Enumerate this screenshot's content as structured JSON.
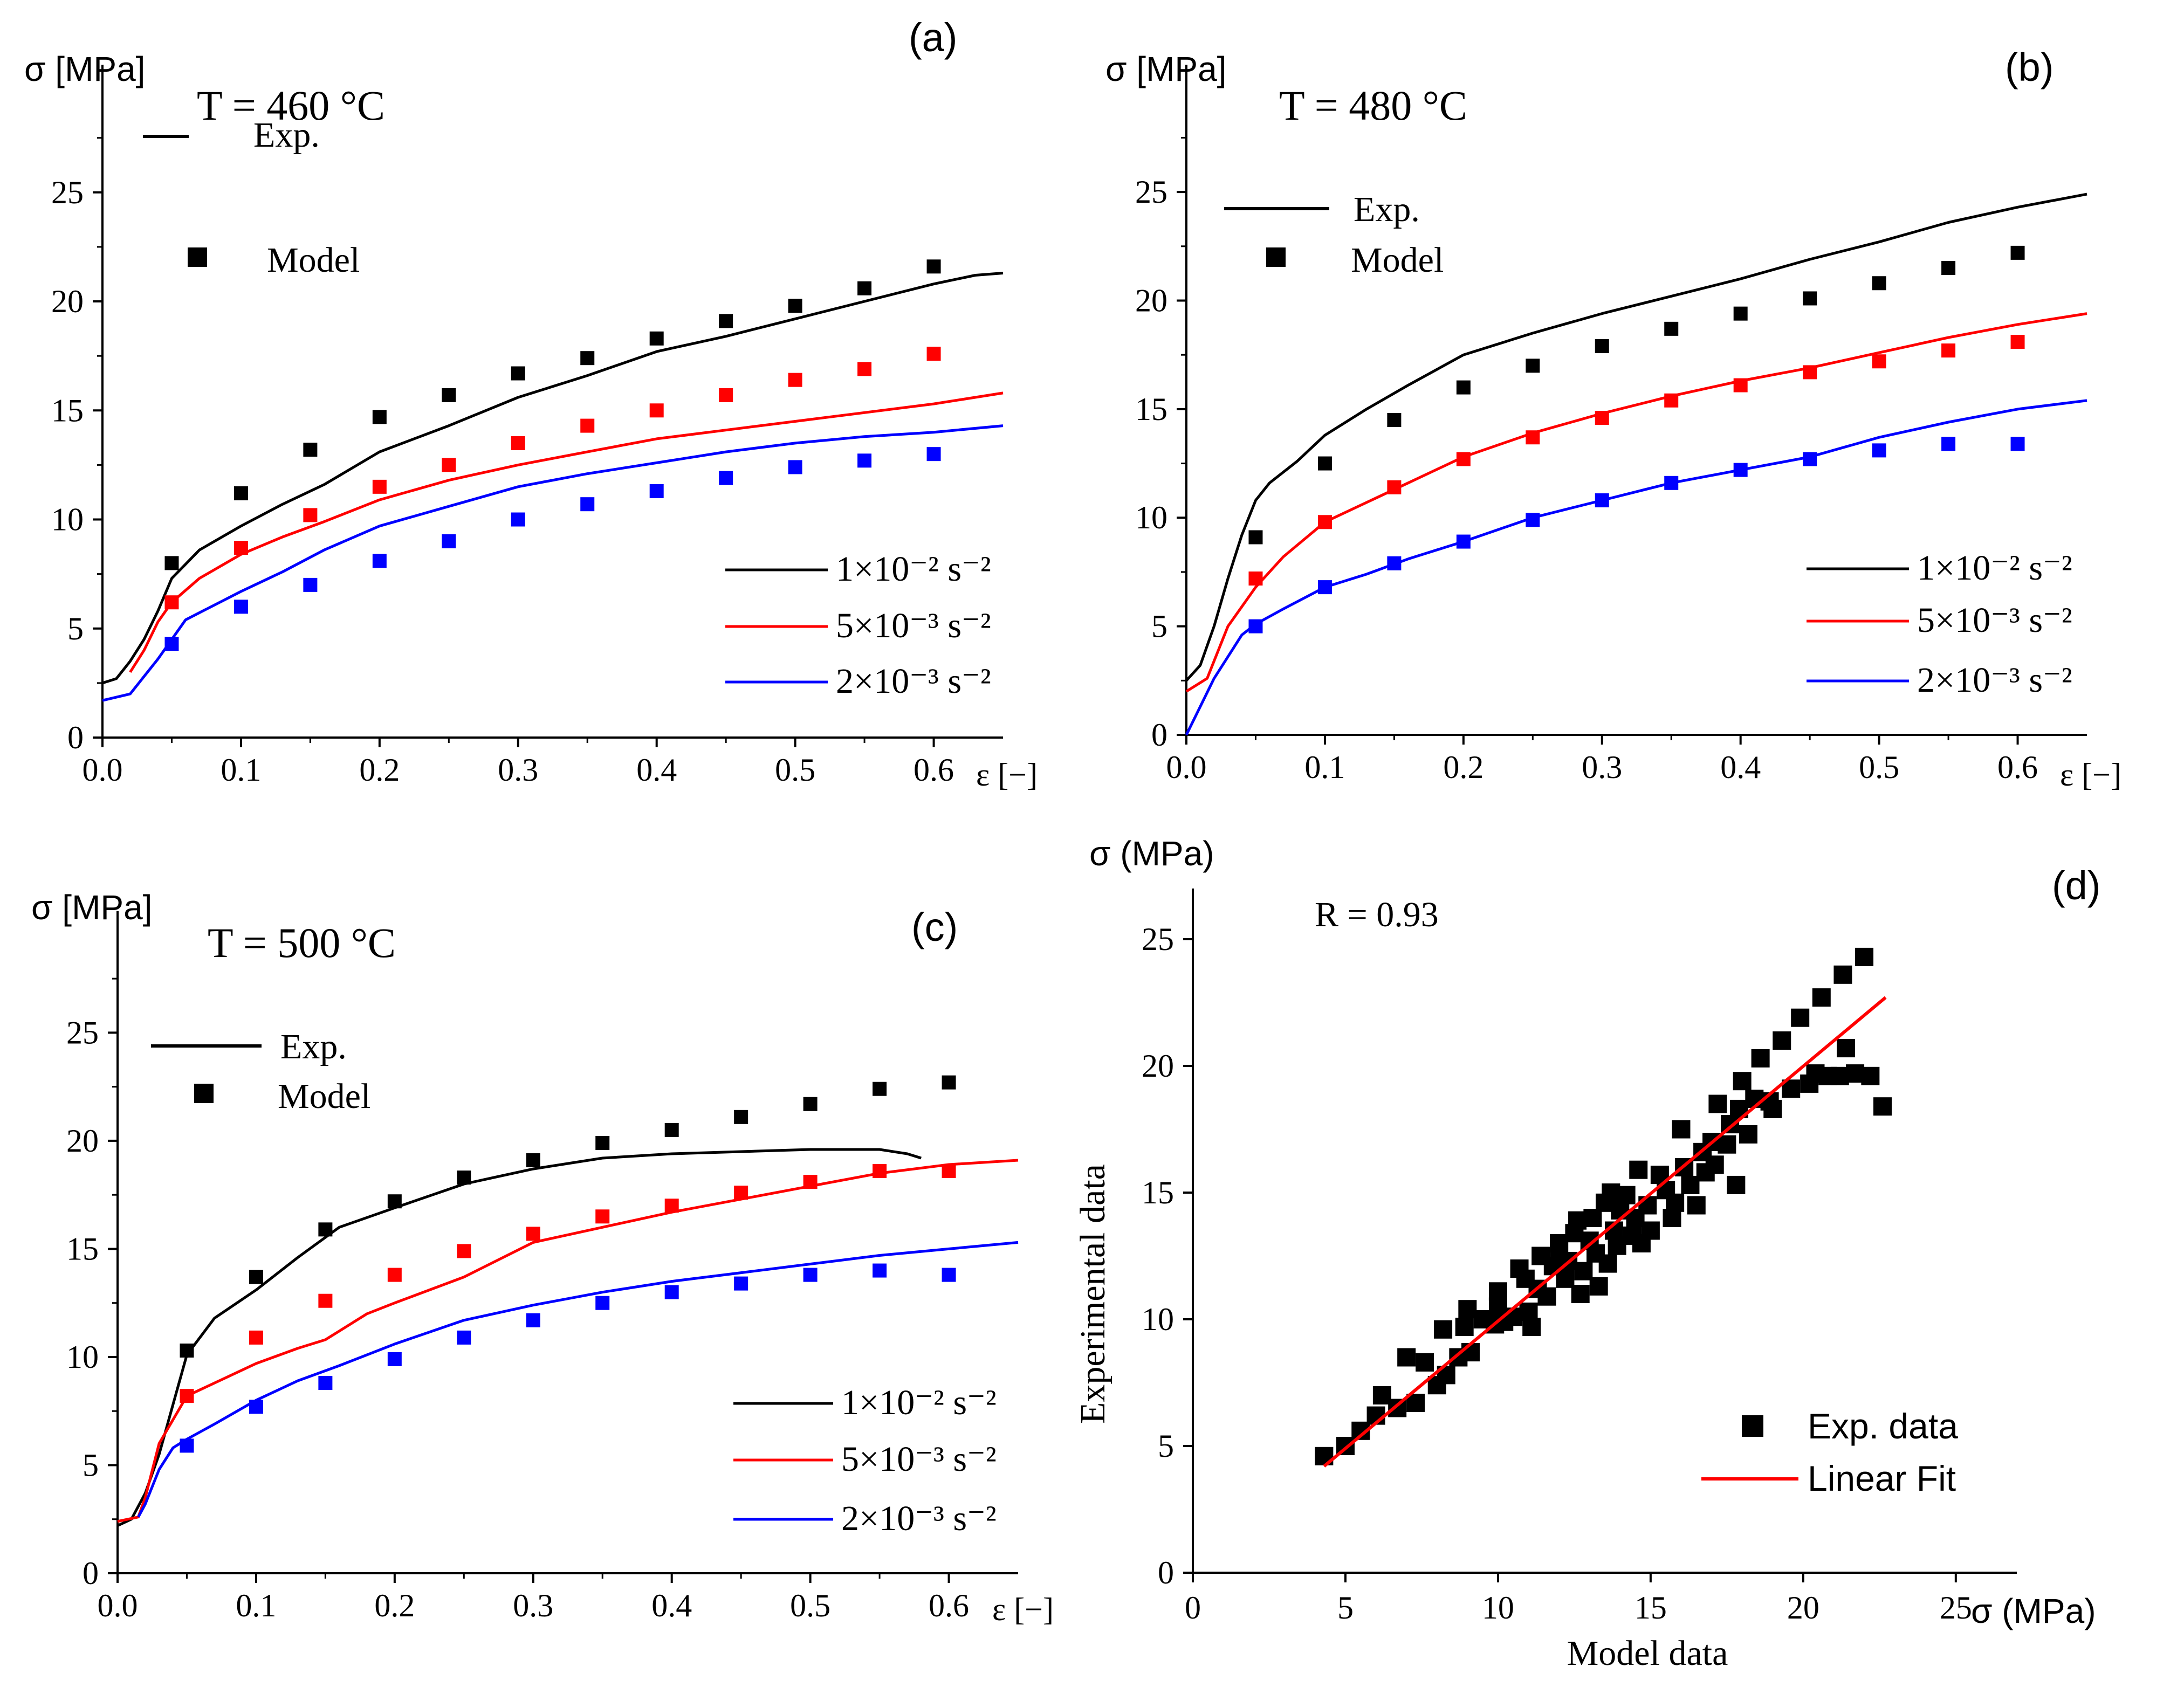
{
  "colors": {
    "black": "#000000",
    "red": "#ff0000",
    "blue": "#0000ff",
    "fit": "#ff0000"
  },
  "chart_data": [
    {
      "type": "line",
      "panel": "(a)",
      "title": "T = 460 °C",
      "ylabel": "σ [MPa]",
      "xlabel": "ε [−]",
      "xlim": [
        0,
        0.65
      ],
      "ylim": [
        0,
        29
      ],
      "xticks": [
        "0.0",
        "0.1",
        "0.2",
        "0.3",
        "0.4",
        "0.5",
        "0.6"
      ],
      "yticks": [
        "0",
        "5",
        "10",
        "15",
        "20",
        "25"
      ],
      "style_legend": {
        "exp": "Exp.",
        "model": "Model"
      },
      "series": [
        {
          "name": "1×10⁻² s⁻²",
          "color": "black",
          "exp_x": [
            0,
            0.01,
            0.02,
            0.03,
            0.04,
            0.05,
            0.07,
            0.1,
            0.13,
            0.16,
            0.2,
            0.25,
            0.3,
            0.35,
            0.4,
            0.45,
            0.5,
            0.55,
            0.6,
            0.63,
            0.65
          ],
          "exp_y": [
            2.5,
            2.7,
            3.5,
            4.5,
            5.8,
            7.3,
            8.6,
            9.7,
            10.7,
            11.6,
            13.1,
            14.3,
            15.6,
            16.6,
            17.7,
            18.4,
            19.2,
            20.0,
            20.8,
            21.2,
            21.3
          ],
          "model_x": [
            0.05,
            0.1,
            0.15,
            0.2,
            0.25,
            0.3,
            0.35,
            0.4,
            0.45,
            0.5,
            0.55,
            0.6
          ],
          "model_y": [
            8.0,
            11.2,
            13.2,
            14.7,
            15.7,
            16.7,
            17.4,
            18.3,
            19.1,
            19.8,
            20.6,
            21.6
          ]
        },
        {
          "name": "5×10⁻³ s⁻²",
          "color": "red",
          "exp_x": [
            0.02,
            0.03,
            0.04,
            0.05,
            0.07,
            0.1,
            0.13,
            0.16,
            0.2,
            0.25,
            0.3,
            0.35,
            0.4,
            0.45,
            0.5,
            0.55,
            0.6,
            0.65
          ],
          "exp_y": [
            3.0,
            4.0,
            5.3,
            6.2,
            7.3,
            8.4,
            9.2,
            9.9,
            10.9,
            11.8,
            12.5,
            13.1,
            13.7,
            14.1,
            14.5,
            14.9,
            15.3,
            15.8
          ],
          "model_x": [
            0.05,
            0.1,
            0.15,
            0.2,
            0.25,
            0.3,
            0.35,
            0.4,
            0.45,
            0.5,
            0.55,
            0.6
          ],
          "model_y": [
            6.2,
            8.7,
            10.2,
            11.5,
            12.5,
            13.5,
            14.3,
            15.0,
            15.7,
            16.4,
            16.9,
            17.6
          ]
        },
        {
          "name": "2×10⁻³ s⁻²",
          "color": "blue",
          "exp_x": [
            0,
            0.02,
            0.03,
            0.04,
            0.05,
            0.06,
            0.1,
            0.13,
            0.16,
            0.2,
            0.25,
            0.3,
            0.35,
            0.4,
            0.45,
            0.5,
            0.55,
            0.6,
            0.65
          ],
          "exp_y": [
            1.7,
            2.0,
            2.8,
            3.6,
            4.5,
            5.4,
            6.7,
            7.6,
            8.6,
            9.7,
            10.6,
            11.5,
            12.1,
            12.6,
            13.1,
            13.5,
            13.8,
            14.0,
            14.3
          ],
          "model_x": [
            0.05,
            0.1,
            0.15,
            0.2,
            0.25,
            0.3,
            0.35,
            0.4,
            0.45,
            0.5,
            0.55,
            0.6
          ],
          "model_y": [
            4.3,
            6.0,
            7.0,
            8.1,
            9.0,
            10.0,
            10.7,
            11.3,
            11.9,
            12.4,
            12.7,
            13.0
          ]
        }
      ]
    },
    {
      "type": "line",
      "panel": "(b)",
      "title": "T = 480 °C",
      "ylabel": "σ [MPa]",
      "xlabel": "ε [−]",
      "xlim": [
        0,
        0.65
      ],
      "ylim": [
        0,
        29
      ],
      "xticks": [
        "0.0",
        "0.1",
        "0.2",
        "0.3",
        "0.4",
        "0.5",
        "0.6"
      ],
      "yticks": [
        "0",
        "5",
        "10",
        "15",
        "20",
        "25"
      ],
      "style_legend": {
        "exp": "Exp.",
        "model": "Model"
      },
      "series": [
        {
          "name": "1×10⁻² s⁻²",
          "color": "black",
          "exp_x": [
            0,
            0.01,
            0.02,
            0.03,
            0.04,
            0.05,
            0.06,
            0.08,
            0.1,
            0.13,
            0.16,
            0.2,
            0.25,
            0.3,
            0.35,
            0.4,
            0.45,
            0.5,
            0.55,
            0.6,
            0.65
          ],
          "exp_y": [
            2.5,
            3.2,
            5.0,
            7.2,
            9.2,
            10.8,
            11.6,
            12.6,
            13.8,
            15.0,
            16.1,
            17.5,
            18.5,
            19.4,
            20.2,
            21.0,
            21.9,
            22.7,
            23.6,
            24.3,
            24.9
          ],
          "model_x": [
            0.05,
            0.1,
            0.15,
            0.2,
            0.25,
            0.3,
            0.35,
            0.4,
            0.45,
            0.5,
            0.55,
            0.6
          ],
          "model_y": [
            9.1,
            12.5,
            14.5,
            16.0,
            17.0,
            17.9,
            18.7,
            19.4,
            20.1,
            20.8,
            21.5,
            22.2
          ]
        },
        {
          "name": "5×10⁻³ s⁻²",
          "color": "red",
          "exp_x": [
            0,
            0.015,
            0.03,
            0.05,
            0.07,
            0.1,
            0.13,
            0.16,
            0.2,
            0.25,
            0.3,
            0.35,
            0.4,
            0.45,
            0.5,
            0.55,
            0.6,
            0.65
          ],
          "exp_y": [
            2.0,
            2.6,
            5.0,
            6.8,
            8.2,
            9.8,
            10.7,
            11.6,
            12.8,
            13.9,
            14.8,
            15.6,
            16.3,
            16.9,
            17.6,
            18.3,
            18.9,
            19.4
          ],
          "model_x": [
            0.05,
            0.1,
            0.15,
            0.2,
            0.25,
            0.3,
            0.35,
            0.4,
            0.45,
            0.5,
            0.55,
            0.6
          ],
          "model_y": [
            7.2,
            9.8,
            11.4,
            12.7,
            13.7,
            14.6,
            15.4,
            16.1,
            16.7,
            17.2,
            17.7,
            18.1
          ]
        },
        {
          "name": "2×10⁻³ s⁻²",
          "color": "blue",
          "exp_x": [
            0,
            0.02,
            0.04,
            0.05,
            0.07,
            0.1,
            0.13,
            0.16,
            0.2,
            0.25,
            0.3,
            0.35,
            0.4,
            0.45,
            0.5,
            0.55,
            0.6,
            0.65
          ],
          "exp_y": [
            0,
            2.6,
            4.6,
            5.1,
            5.8,
            6.8,
            7.4,
            8.1,
            8.9,
            10.0,
            10.8,
            11.6,
            12.2,
            12.8,
            13.7,
            14.4,
            15.0,
            15.4
          ],
          "model_x": [
            0.05,
            0.1,
            0.15,
            0.2,
            0.25,
            0.3,
            0.35,
            0.4,
            0.45,
            0.5,
            0.55,
            0.6
          ],
          "model_y": [
            5.0,
            6.8,
            7.9,
            8.9,
            9.9,
            10.8,
            11.6,
            12.2,
            12.7,
            13.1,
            13.4,
            13.4
          ]
        }
      ]
    },
    {
      "type": "line",
      "panel": "(c)",
      "title": "T = 500 °C",
      "ylabel": "σ [MPa]",
      "xlabel": "ε [−]",
      "xlim": [
        0,
        0.65
      ],
      "ylim": [
        0,
        29
      ],
      "xticks": [
        "0.0",
        "0.1",
        "0.2",
        "0.3",
        "0.4",
        "0.5",
        "0.6"
      ],
      "yticks": [
        "0",
        "5",
        "10",
        "15",
        "20",
        "25"
      ],
      "style_legend": {
        "exp": "Exp.",
        "model": "Model"
      },
      "series": [
        {
          "name": "1×10⁻² s⁻²",
          "color": "black",
          "exp_x": [
            0,
            0.01,
            0.02,
            0.03,
            0.04,
            0.05,
            0.07,
            0.1,
            0.13,
            0.16,
            0.2,
            0.25,
            0.3,
            0.35,
            0.4,
            0.45,
            0.5,
            0.55,
            0.57,
            0.58
          ],
          "exp_y": [
            2.2,
            2.5,
            3.7,
            5.5,
            7.8,
            10.1,
            11.8,
            13.1,
            14.6,
            16.0,
            16.9,
            18.0,
            18.7,
            19.2,
            19.4,
            19.5,
            19.6,
            19.6,
            19.4,
            19.2
          ],
          "model_x": [
            0.05,
            0.1,
            0.15,
            0.2,
            0.25,
            0.3,
            0.35,
            0.4,
            0.45,
            0.5,
            0.55,
            0.6
          ],
          "model_y": [
            10.3,
            13.7,
            15.9,
            17.2,
            18.3,
            19.1,
            19.9,
            20.5,
            21.1,
            21.7,
            22.4,
            22.7
          ]
        },
        {
          "name": "5×10⁻³ s⁻²",
          "color": "red",
          "exp_x": [
            0,
            0.015,
            0.02,
            0.03,
            0.05,
            0.08,
            0.1,
            0.13,
            0.15,
            0.18,
            0.2,
            0.25,
            0.3,
            0.35,
            0.4,
            0.45,
            0.5,
            0.55,
            0.6,
            0.65
          ],
          "exp_y": [
            2.4,
            2.6,
            3.5,
            6.0,
            8.2,
            9.1,
            9.7,
            10.4,
            10.8,
            12.0,
            12.5,
            13.7,
            15.3,
            16.0,
            16.7,
            17.3,
            17.9,
            18.5,
            18.9,
            19.1
          ],
          "model_x": [
            0.05,
            0.1,
            0.15,
            0.2,
            0.25,
            0.3,
            0.35,
            0.4,
            0.45,
            0.5,
            0.55,
            0.6
          ],
          "model_y": [
            8.2,
            10.9,
            12.6,
            13.8,
            14.9,
            15.7,
            16.5,
            17.0,
            17.6,
            18.1,
            18.6,
            18.6
          ]
        },
        {
          "name": "2×10⁻³ s⁻²",
          "color": "blue",
          "exp_x": [
            0.015,
            0.02,
            0.03,
            0.04,
            0.05,
            0.07,
            0.1,
            0.13,
            0.16,
            0.2,
            0.25,
            0.3,
            0.35,
            0.4,
            0.45,
            0.5,
            0.55,
            0.6,
            0.65
          ],
          "exp_y": [
            2.6,
            3.2,
            4.8,
            5.8,
            6.2,
            6.9,
            8.0,
            8.9,
            9.6,
            10.6,
            11.7,
            12.4,
            13.0,
            13.5,
            13.9,
            14.3,
            14.7,
            15.0,
            15.3
          ],
          "model_x": [
            0.05,
            0.1,
            0.15,
            0.2,
            0.25,
            0.3,
            0.35,
            0.4,
            0.45,
            0.5,
            0.55,
            0.6
          ],
          "model_y": [
            5.9,
            7.7,
            8.8,
            9.9,
            10.9,
            11.7,
            12.5,
            13.0,
            13.4,
            13.8,
            14.0,
            13.8
          ]
        }
      ]
    },
    {
      "type": "scatter",
      "panel": "(d)",
      "annotation": "R = 0.93",
      "ylabel_top": "σ (MPa)",
      "ylabel": "Experimental data",
      "xlabel": "Model data",
      "xlabel_right": "σ (MPa)",
      "xlim": [
        0,
        27
      ],
      "ylim": [
        0,
        27
      ],
      "xticks": [
        "0",
        "5",
        "10",
        "15",
        "20",
        "25"
      ],
      "yticks": [
        "0",
        "5",
        "10",
        "15",
        "20",
        "25"
      ],
      "legend": {
        "points": "Exp. data",
        "fit": "Linear Fit"
      },
      "fit": {
        "x": [
          4.3,
          22.7
        ],
        "y": [
          4.2,
          22.7
        ]
      },
      "points": [
        [
          4.3,
          4.6
        ],
        [
          5.0,
          5.0
        ],
        [
          5.5,
          5.6
        ],
        [
          6.0,
          6.2
        ],
        [
          6.2,
          7.0
        ],
        [
          6.7,
          6.5
        ],
        [
          7.0,
          8.5
        ],
        [
          7.3,
          6.7
        ],
        [
          7.6,
          8.3
        ],
        [
          8.0,
          7.4
        ],
        [
          8.2,
          9.6
        ],
        [
          8.3,
          7.8
        ],
        [
          8.7,
          8.5
        ],
        [
          8.9,
          9.7
        ],
        [
          9.0,
          10.4
        ],
        [
          9.1,
          8.7
        ],
        [
          9.5,
          10.0
        ],
        [
          9.9,
          9.8
        ],
        [
          10.0,
          11.1
        ],
        [
          10.0,
          10.5
        ],
        [
          10.2,
          9.9
        ],
        [
          10.5,
          10.1
        ],
        [
          10.7,
          12.0
        ],
        [
          10.9,
          11.6
        ],
        [
          11.0,
          10.3
        ],
        [
          11.1,
          9.7
        ],
        [
          11.3,
          11.2
        ],
        [
          11.4,
          12.5
        ],
        [
          11.6,
          10.9
        ],
        [
          11.8,
          12.1
        ],
        [
          12.0,
          12.7
        ],
        [
          12.0,
          13.0
        ],
        [
          12.2,
          11.6
        ],
        [
          12.3,
          12.3
        ],
        [
          12.5,
          13.4
        ],
        [
          12.6,
          13.9
        ],
        [
          12.7,
          11.0
        ],
        [
          12.8,
          11.9
        ],
        [
          13.0,
          13.1
        ],
        [
          13.1,
          14.0
        ],
        [
          13.2,
          12.6
        ],
        [
          13.3,
          11.3
        ],
        [
          13.5,
          14.6
        ],
        [
          13.6,
          12.2
        ],
        [
          13.7,
          15.0
        ],
        [
          13.8,
          13.5
        ],
        [
          13.9,
          12.9
        ],
        [
          14.0,
          14.3
        ],
        [
          14.2,
          14.9
        ],
        [
          14.4,
          13.3
        ],
        [
          14.5,
          14.0
        ],
        [
          14.6,
          15.9
        ],
        [
          14.7,
          13.0
        ],
        [
          14.9,
          14.5
        ],
        [
          15.0,
          13.5
        ],
        [
          15.3,
          15.7
        ],
        [
          15.5,
          15.1
        ],
        [
          15.7,
          14.0
        ],
        [
          15.8,
          14.6
        ],
        [
          16.0,
          17.5
        ],
        [
          16.1,
          16.0
        ],
        [
          16.3,
          15.3
        ],
        [
          16.5,
          14.5
        ],
        [
          16.7,
          16.6
        ],
        [
          16.8,
          15.8
        ],
        [
          17.0,
          17.0
        ],
        [
          17.1,
          16.1
        ],
        [
          17.2,
          18.5
        ],
        [
          17.5,
          16.9
        ],
        [
          17.6,
          17.7
        ],
        [
          17.8,
          15.3
        ],
        [
          17.9,
          18.3
        ],
        [
          18.0,
          19.4
        ],
        [
          18.2,
          17.3
        ],
        [
          18.4,
          18.7
        ],
        [
          18.6,
          20.3
        ],
        [
          18.9,
          18.6
        ],
        [
          19.0,
          18.3
        ],
        [
          19.3,
          21.0
        ],
        [
          19.6,
          19.1
        ],
        [
          19.9,
          21.9
        ],
        [
          20.2,
          19.3
        ],
        [
          20.4,
          19.7
        ],
        [
          20.6,
          22.7
        ],
        [
          20.8,
          19.6
        ],
        [
          21.2,
          19.6
        ],
        [
          21.3,
          23.6
        ],
        [
          21.4,
          20.7
        ],
        [
          21.7,
          19.7
        ],
        [
          22.0,
          24.3
        ],
        [
          22.2,
          19.6
        ],
        [
          22.6,
          18.4
        ]
      ]
    }
  ]
}
